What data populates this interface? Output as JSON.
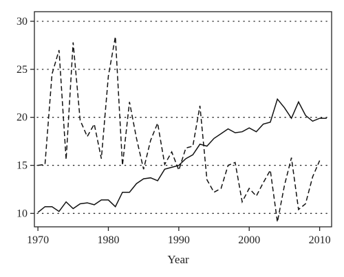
{
  "chart_data": {
    "type": "line",
    "title": "",
    "xlabel": "Year",
    "ylabel": "",
    "xlim": [
      1969.5,
      2011.7
    ],
    "ylim": [
      8.6,
      31.0
    ],
    "xticks": [
      1970,
      1980,
      1990,
      2000,
      2010
    ],
    "yticks": [
      10,
      15,
      20,
      25,
      30
    ],
    "grid": "horizontal dotted",
    "legend": "none",
    "series": [
      {
        "style": "solid",
        "color": "#111111",
        "x": [
          1970,
          1971,
          1972,
          1973,
          1974,
          1975,
          1976,
          1977,
          1978,
          1979,
          1980,
          1981,
          1982,
          1983,
          1984,
          1985,
          1986,
          1987,
          1988,
          1989,
          1990,
          1991,
          1992,
          1993,
          1994,
          1995,
          1996,
          1997,
          1998,
          1999,
          2000,
          2001,
          2002,
          2003,
          2004,
          2005,
          2006,
          2007,
          2008,
          2009,
          2010,
          2011
        ],
        "y": [
          10.1,
          10.7,
          10.7,
          10.2,
          11.2,
          10.5,
          11.0,
          11.1,
          10.9,
          11.4,
          11.4,
          10.7,
          12.2,
          12.2,
          13.1,
          13.6,
          13.7,
          13.4,
          14.6,
          14.8,
          15.0,
          15.7,
          16.1,
          17.2,
          17.0,
          17.8,
          18.3,
          18.8,
          18.4,
          18.5,
          18.9,
          18.5,
          19.3,
          19.5,
          21.9,
          21.0,
          19.9,
          21.6,
          20.2,
          19.6,
          19.9,
          19.9
        ]
      },
      {
        "style": "dashed",
        "color": "#111111",
        "x": [
          1970,
          1971,
          1972,
          1973,
          1974,
          1975,
          1976,
          1977,
          1978,
          1979,
          1980,
          1981,
          1982,
          1983,
          1984,
          1985,
          1986,
          1987,
          1988,
          1989,
          1990,
          1991,
          1992,
          1993,
          1994,
          1995,
          1996,
          1997,
          1998,
          1999,
          2000,
          2001,
          2002,
          2003,
          2004,
          2005,
          2006,
          2007,
          2008,
          2009,
          2010
        ],
        "y": [
          15.0,
          15.1,
          24.5,
          27.0,
          15.6,
          27.8,
          19.7,
          18.0,
          19.3,
          15.7,
          24.3,
          28.4,
          15.0,
          21.6,
          17.8,
          14.6,
          17.6,
          19.4,
          15.1,
          16.4,
          14.5,
          16.8,
          17.0,
          21.2,
          13.5,
          12.2,
          12.6,
          15.0,
          15.3,
          11.2,
          12.6,
          11.8,
          13.2,
          14.5,
          9.1,
          12.9,
          15.8,
          10.4,
          11.0,
          13.8,
          15.5
        ]
      }
    ]
  }
}
